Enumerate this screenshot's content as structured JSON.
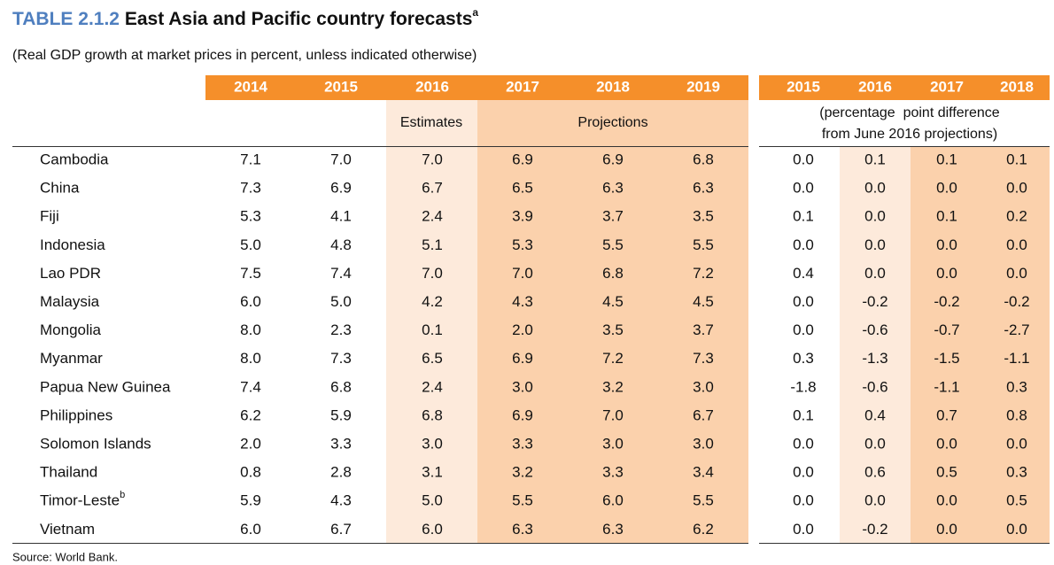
{
  "title": {
    "label": "TABLE 2.1.2",
    "text": "East Asia and Pacific country forecasts",
    "footnote": "a"
  },
  "subtitle": "(Real GDP growth at market prices in percent, unless indicated otherwise)",
  "table": {
    "years": [
      "2014",
      "2015",
      "2016",
      "2017",
      "2018",
      "2019"
    ],
    "estimates": "Estimates",
    "projections": "Projections",
    "diff_years": [
      "2015",
      "2016",
      "2017",
      "2018"
    ],
    "diff_note": [
      "(percentage  point difference",
      "from June 2016 projections)"
    ],
    "rows": [
      {
        "country": "Cambodia",
        "values": [
          "7.1",
          "7.0",
          "7.0",
          "6.9",
          "6.9",
          "6.8"
        ],
        "diffs": [
          "0.0",
          "0.1",
          "0.1",
          "0.1"
        ]
      },
      {
        "country": "China",
        "values": [
          "7.3",
          "6.9",
          "6.7",
          "6.5",
          "6.3",
          "6.3"
        ],
        "diffs": [
          "0.0",
          "0.0",
          "0.0",
          "0.0"
        ]
      },
      {
        "country": "Fiji",
        "values": [
          "5.3",
          "4.1",
          "2.4",
          "3.9",
          "3.7",
          "3.5"
        ],
        "diffs": [
          "0.1",
          "0.0",
          "0.1",
          "0.2"
        ]
      },
      {
        "country": "Indonesia",
        "values": [
          "5.0",
          "4.8",
          "5.1",
          "5.3",
          "5.5",
          "5.5"
        ],
        "diffs": [
          "0.0",
          "0.0",
          "0.0",
          "0.0"
        ]
      },
      {
        "country": "Lao PDR",
        "values": [
          "7.5",
          "7.4",
          "7.0",
          "7.0",
          "6.8",
          "7.2"
        ],
        "diffs": [
          "0.4",
          "0.0",
          "0.0",
          "0.0"
        ]
      },
      {
        "country": "Malaysia",
        "values": [
          "6.0",
          "5.0",
          "4.2",
          "4.3",
          "4.5",
          "4.5"
        ],
        "diffs": [
          "0.0",
          "-0.2",
          "-0.2",
          "-0.2"
        ]
      },
      {
        "country": "Mongolia",
        "values": [
          "8.0",
          "2.3",
          "0.1",
          "2.0",
          "3.5",
          "3.7"
        ],
        "diffs": [
          "0.0",
          "-0.6",
          "-0.7",
          "-2.7"
        ]
      },
      {
        "country": "Myanmar",
        "values": [
          "8.0",
          "7.3",
          "6.5",
          "6.9",
          "7.2",
          "7.3"
        ],
        "diffs": [
          "0.3",
          "-1.3",
          "-1.5",
          "-1.1"
        ]
      },
      {
        "country": "Papua New Guinea",
        "values": [
          "7.4",
          "6.8",
          "2.4",
          "3.0",
          "3.2",
          "3.0"
        ],
        "diffs": [
          "-1.8",
          "-0.6",
          "-1.1",
          "0.3"
        ]
      },
      {
        "country": "Philippines",
        "values": [
          "6.2",
          "5.9",
          "6.8",
          "6.9",
          "7.0",
          "6.7"
        ],
        "diffs": [
          "0.1",
          "0.4",
          "0.7",
          "0.8"
        ]
      },
      {
        "country": "Solomon Islands",
        "values": [
          "2.0",
          "3.3",
          "3.0",
          "3.3",
          "3.0",
          "3.0"
        ],
        "diffs": [
          "0.0",
          "0.0",
          "0.0",
          "0.0"
        ]
      },
      {
        "country": "Thailand",
        "values": [
          "0.8",
          "2.8",
          "3.1",
          "3.2",
          "3.3",
          "3.4"
        ],
        "diffs": [
          "0.0",
          "0.6",
          "0.5",
          "0.3"
        ]
      },
      {
        "country": "Timor-Leste",
        "footnote": "b",
        "values": [
          "5.9",
          "4.3",
          "5.0",
          "5.5",
          "6.0",
          "5.5"
        ],
        "diffs": [
          "0.0",
          "0.0",
          "0.0",
          "0.5"
        ]
      },
      {
        "country": "Vietnam",
        "values": [
          "6.0",
          "6.7",
          "6.0",
          "6.3",
          "6.3",
          "6.2"
        ],
        "diffs": [
          "0.0",
          "-0.2",
          "0.0",
          "0.0"
        ]
      }
    ]
  },
  "source": "Source: World Bank."
}
